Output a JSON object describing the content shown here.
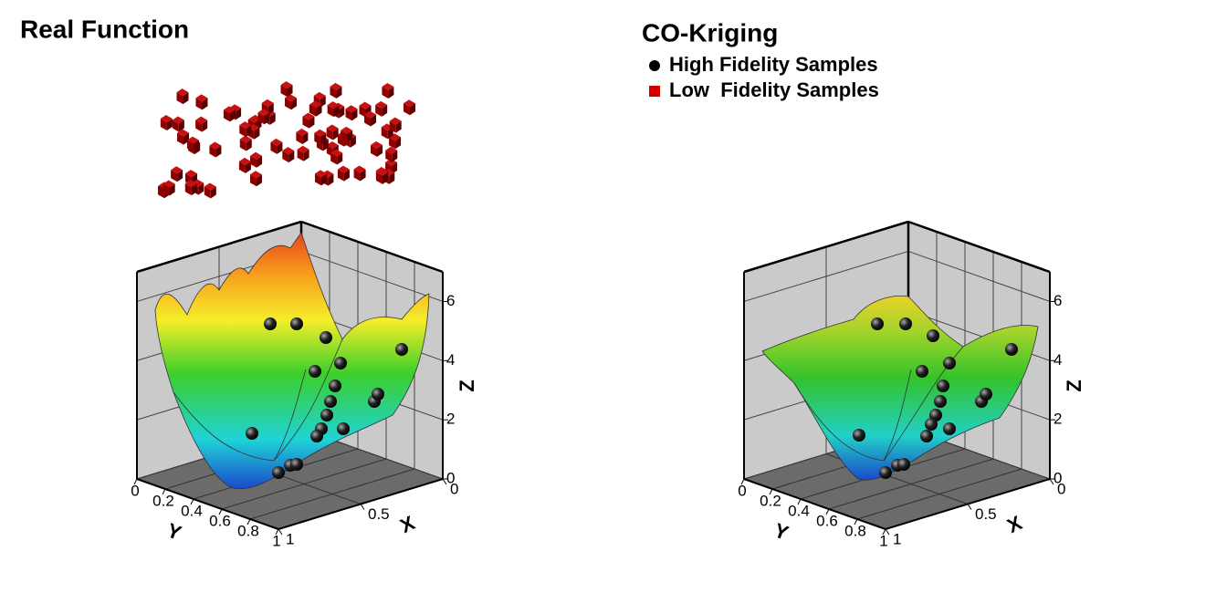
{
  "chart_data": [
    {
      "type": "surface3d",
      "title": "Real Function",
      "xlabel": "X",
      "ylabel": "Y",
      "zlabel": "Z",
      "xlim": [
        0,
        1
      ],
      "ylim": [
        0,
        1
      ],
      "zlim": [
        0,
        7
      ],
      "xticks": [
        0,
        0.5,
        1
      ],
      "yticks": [
        0,
        0.2,
        0.4,
        0.6,
        0.8,
        1
      ],
      "zticks": [
        0,
        2,
        4,
        6
      ]
    },
    {
      "type": "surface3d",
      "title": "CO-Kriging",
      "xlabel": "X",
      "ylabel": "Y",
      "zlabel": "Z",
      "xlim": [
        0,
        1
      ],
      "ylim": [
        0,
        1
      ],
      "zlim": [
        0,
        7
      ],
      "xticks": [
        0,
        0.5,
        1
      ],
      "yticks": [
        0,
        0.2,
        0.4,
        0.6,
        0.8,
        1
      ],
      "zticks": [
        0,
        2,
        4,
        6
      ],
      "series": [
        {
          "name": "High Fidelity Samples",
          "color": "#000000",
          "marker": "circle"
        },
        {
          "name": "Low  Fidelity Samples",
          "color": "#d40000",
          "marker": "square"
        }
      ]
    }
  ]
}
